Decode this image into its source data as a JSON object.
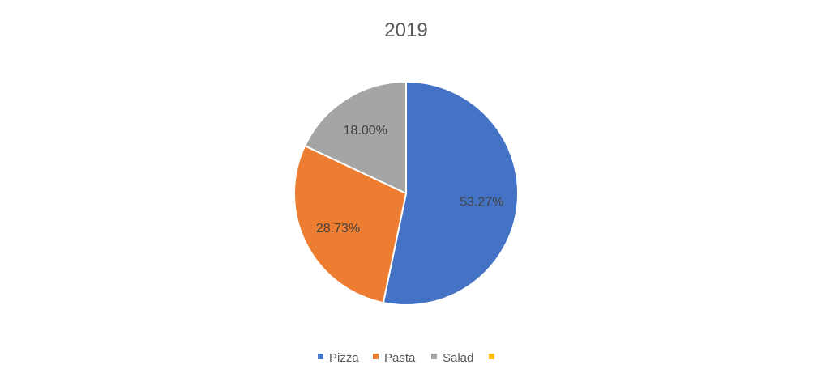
{
  "chart_data": {
    "type": "pie",
    "title": "2019",
    "categories": [
      "Pizza",
      "Pasta",
      "Salad",
      ""
    ],
    "values": [
      53.27,
      28.73,
      18.0,
      0
    ],
    "data_labels": [
      "53.27%",
      "28.73%",
      "18.00%",
      ""
    ],
    "colors": [
      "#4472C4",
      "#ED7D31",
      "#A5A5A5",
      "#FFC000"
    ],
    "start_angle": "top, clockwise",
    "legend_position": "bottom"
  }
}
